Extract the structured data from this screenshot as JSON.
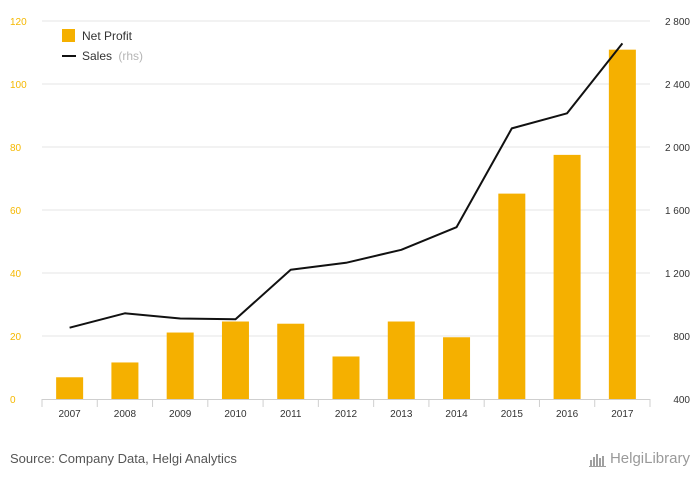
{
  "chart_data": {
    "type": "bar",
    "categories": [
      "2007",
      "2008",
      "2009",
      "2010",
      "2011",
      "2012",
      "2013",
      "2014",
      "2015",
      "2016",
      "2017"
    ],
    "series": [
      {
        "name": "Net Profit",
        "kind": "bar",
        "axis": "left",
        "color": "#f5b000",
        "values": [
          6.9,
          11.6,
          21.1,
          24.6,
          23.9,
          13.5,
          24.6,
          19.6,
          65.2,
          77.5,
          110.9
        ]
      },
      {
        "name": "Sales",
        "kind": "line",
        "axis": "right",
        "color": "#111111",
        "values": [
          853,
          944,
          911,
          906,
          1221,
          1265,
          1347,
          1491,
          2118,
          2214,
          2658
        ]
      }
    ],
    "legend": {
      "net_profit_label": "Net Profit",
      "sales_label": "Sales",
      "sales_suffix": "(rhs)",
      "position": "top-left"
    },
    "y_left": {
      "lim": [
        0,
        120
      ],
      "ticks": [
        0,
        20,
        40,
        60,
        80,
        100,
        120
      ],
      "tick_labels": [
        "0",
        "20",
        "40",
        "60",
        "80",
        "100",
        "120"
      ],
      "color": "#f5b800"
    },
    "y_right": {
      "lim": [
        400,
        2800
      ],
      "ticks": [
        400,
        800,
        1200,
        1600,
        2000,
        2400,
        2800
      ],
      "tick_labels": [
        "400",
        "800",
        "1 200",
        "1 600",
        "2 000",
        "2 400",
        "2 800"
      ]
    },
    "grid": true
  },
  "footer": {
    "source": "Source: Company Data, Helgi Analytics",
    "logo_text": "HelgiLibrary"
  }
}
